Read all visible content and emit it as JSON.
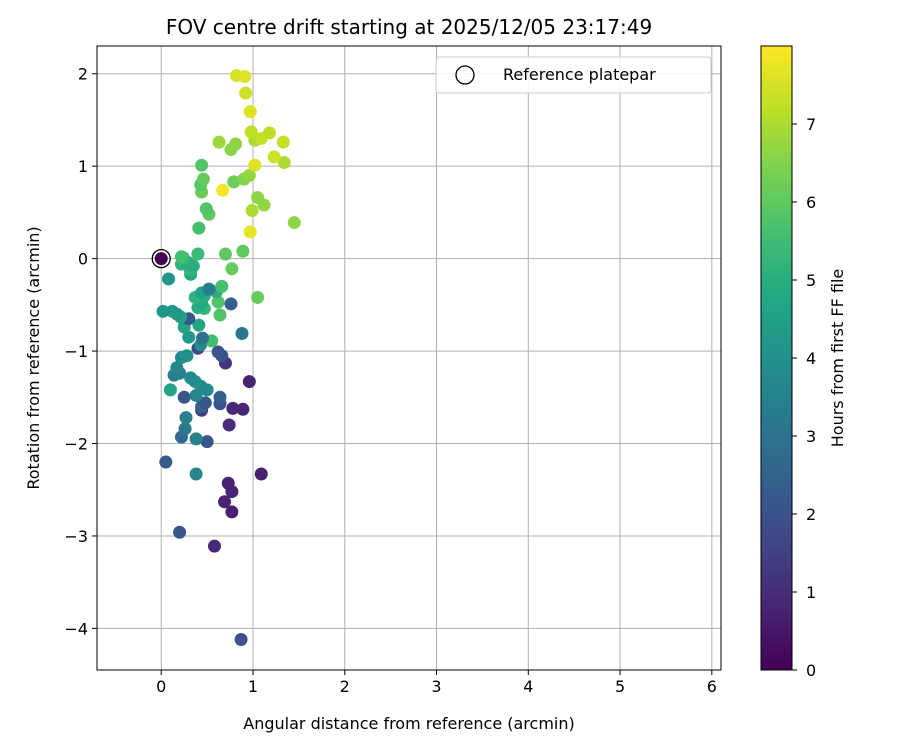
{
  "chart_data": {
    "type": "scatter",
    "title": "FOV centre drift starting at 2025/12/05 23:17:49",
    "xlabel": "Angular distance from reference (arcmin)",
    "ylabel": "Rotation from reference (arcmin)",
    "xlim": [
      -0.7,
      6.1
    ],
    "ylim": [
      -4.45,
      2.3
    ],
    "xticks": [
      0,
      1,
      2,
      3,
      4,
      5,
      6
    ],
    "yticks": [
      -4,
      -3,
      -2,
      -1,
      0,
      1,
      2
    ],
    "grid": true,
    "legend": {
      "position": "top-right",
      "entries": [
        "Reference platepar"
      ]
    },
    "reference_point": {
      "x": 0,
      "y": 0
    },
    "colorbar": {
      "label": "Hours from first FF file",
      "range": [
        0,
        8
      ],
      "ticks": [
        0,
        1,
        2,
        3,
        4,
        5,
        6,
        7
      ],
      "colormap": "viridis"
    },
    "points": [
      {
        "x": 0.0,
        "y": 0.0,
        "h": 0.0
      },
      {
        "x": 0.87,
        "y": -4.12,
        "h": 2.0
      },
      {
        "x": 0.58,
        "y": -3.11,
        "h": 0.9
      },
      {
        "x": 0.2,
        "y": -2.96,
        "h": 2.2
      },
      {
        "x": 0.77,
        "y": -2.74,
        "h": 0.7
      },
      {
        "x": 0.69,
        "y": -2.63,
        "h": 0.8
      },
      {
        "x": 0.77,
        "y": -2.52,
        "h": 0.8
      },
      {
        "x": 0.73,
        "y": -2.43,
        "h": 0.7
      },
      {
        "x": 1.09,
        "y": -2.33,
        "h": 0.7
      },
      {
        "x": 0.38,
        "y": -2.33,
        "h": 3.6
      },
      {
        "x": 0.05,
        "y": -2.2,
        "h": 2.3
      },
      {
        "x": 0.5,
        "y": -1.98,
        "h": 2.1
      },
      {
        "x": 0.38,
        "y": -1.95,
        "h": 3.5
      },
      {
        "x": 0.22,
        "y": -1.93,
        "h": 2.7
      },
      {
        "x": 0.26,
        "y": -1.84,
        "h": 3.2
      },
      {
        "x": 0.74,
        "y": -1.8,
        "h": 1.0
      },
      {
        "x": 0.27,
        "y": -1.72,
        "h": 3.5
      },
      {
        "x": 0.44,
        "y": -1.64,
        "h": 1.5
      },
      {
        "x": 0.89,
        "y": -1.63,
        "h": 0.8
      },
      {
        "x": 0.78,
        "y": -1.62,
        "h": 0.9
      },
      {
        "x": 0.44,
        "y": -1.6,
        "h": 2.5
      },
      {
        "x": 0.48,
        "y": -1.56,
        "h": 2.2
      },
      {
        "x": 0.64,
        "y": -1.57,
        "h": 2.0
      },
      {
        "x": 0.25,
        "y": -1.5,
        "h": 2.1
      },
      {
        "x": 0.64,
        "y": -1.5,
        "h": 2.4
      },
      {
        "x": 0.38,
        "y": -1.48,
        "h": 3.6
      },
      {
        "x": 0.5,
        "y": -1.42,
        "h": 3.8
      },
      {
        "x": 0.1,
        "y": -1.42,
        "h": 4.6
      },
      {
        "x": 0.43,
        "y": -1.38,
        "h": 3.7
      },
      {
        "x": 0.37,
        "y": -1.33,
        "h": 4.0
      },
      {
        "x": 0.96,
        "y": -1.33,
        "h": 0.8
      },
      {
        "x": 0.32,
        "y": -1.29,
        "h": 3.8
      },
      {
        "x": 0.14,
        "y": -1.26,
        "h": 3.5
      },
      {
        "x": 0.2,
        "y": -1.24,
        "h": 3.5
      },
      {
        "x": 0.17,
        "y": -1.18,
        "h": 3.6
      },
      {
        "x": 0.7,
        "y": -1.13,
        "h": 1.2
      },
      {
        "x": 0.22,
        "y": -1.07,
        "h": 3.8
      },
      {
        "x": 0.28,
        "y": -1.05,
        "h": 4.0
      },
      {
        "x": 0.66,
        "y": -1.05,
        "h": 2.0
      },
      {
        "x": 0.62,
        "y": -1.01,
        "h": 2.1
      },
      {
        "x": 0.4,
        "y": -0.97,
        "h": 1.7
      },
      {
        "x": 0.43,
        "y": -0.93,
        "h": 3.8
      },
      {
        "x": 0.55,
        "y": -0.89,
        "h": 5.6
      },
      {
        "x": 0.45,
        "y": -0.86,
        "h": 3.0
      },
      {
        "x": 0.3,
        "y": -0.85,
        "h": 4.3
      },
      {
        "x": 0.88,
        "y": -0.81,
        "h": 3.2
      },
      {
        "x": 0.25,
        "y": -0.74,
        "h": 4.6
      },
      {
        "x": 0.41,
        "y": -0.72,
        "h": 4.7
      },
      {
        "x": 0.3,
        "y": -0.65,
        "h": 2.2
      },
      {
        "x": 0.21,
        "y": -0.63,
        "h": 4.5
      },
      {
        "x": 0.64,
        "y": -0.61,
        "h": 5.8
      },
      {
        "x": 0.17,
        "y": -0.6,
        "h": 4.2
      },
      {
        "x": 0.12,
        "y": -0.57,
        "h": 4.3
      },
      {
        "x": 0.02,
        "y": -0.57,
        "h": 4.1
      },
      {
        "x": 0.47,
        "y": -0.54,
        "h": 5.2
      },
      {
        "x": 0.4,
        "y": -0.53,
        "h": 5.0
      },
      {
        "x": 0.76,
        "y": -0.49,
        "h": 2.4
      },
      {
        "x": 0.44,
        "y": -0.48,
        "h": 4.8
      },
      {
        "x": 0.62,
        "y": -0.47,
        "h": 5.8
      },
      {
        "x": 0.42,
        "y": -0.44,
        "h": 4.9
      },
      {
        "x": 1.05,
        "y": -0.42,
        "h": 6.1
      },
      {
        "x": 0.37,
        "y": -0.42,
        "h": 5.1
      },
      {
        "x": 0.47,
        "y": -0.4,
        "h": 5.0
      },
      {
        "x": 0.44,
        "y": -0.37,
        "h": 4.6
      },
      {
        "x": 0.6,
        "y": -0.36,
        "h": 5.0
      },
      {
        "x": 0.52,
        "y": -0.33,
        "h": 3.4
      },
      {
        "x": 0.66,
        "y": -0.3,
        "h": 5.6
      },
      {
        "x": 0.08,
        "y": -0.22,
        "h": 4.1
      },
      {
        "x": 0.32,
        "y": -0.17,
        "h": 4.8
      },
      {
        "x": 0.32,
        "y": -0.13,
        "h": 5.2
      },
      {
        "x": 0.77,
        "y": -0.11,
        "h": 6.1
      },
      {
        "x": 0.35,
        "y": -0.08,
        "h": 5.0
      },
      {
        "x": 0.22,
        "y": -0.06,
        "h": 5.2
      },
      {
        "x": 0.29,
        "y": -0.04,
        "h": 5.0
      },
      {
        "x": 0.24,
        "y": 0.01,
        "h": 5.3
      },
      {
        "x": 0.22,
        "y": 0.02,
        "h": 5.6
      },
      {
        "x": 0.4,
        "y": 0.05,
        "h": 5.4
      },
      {
        "x": 0.7,
        "y": 0.05,
        "h": 6.0
      },
      {
        "x": 0.89,
        "y": 0.08,
        "h": 6.0
      },
      {
        "x": 0.97,
        "y": 0.29,
        "h": 7.7
      },
      {
        "x": 0.41,
        "y": 0.33,
        "h": 5.6
      },
      {
        "x": 1.45,
        "y": 0.39,
        "h": 6.6
      },
      {
        "x": 0.52,
        "y": 0.48,
        "h": 6.0
      },
      {
        "x": 0.49,
        "y": 0.54,
        "h": 5.8
      },
      {
        "x": 0.99,
        "y": 0.52,
        "h": 7.0
      },
      {
        "x": 1.12,
        "y": 0.58,
        "h": 6.7
      },
      {
        "x": 1.05,
        "y": 0.66,
        "h": 6.6
      },
      {
        "x": 0.44,
        "y": 0.72,
        "h": 6.2
      },
      {
        "x": 0.67,
        "y": 0.74,
        "h": 7.9
      },
      {
        "x": 0.43,
        "y": 0.8,
        "h": 5.9
      },
      {
        "x": 0.79,
        "y": 0.83,
        "h": 6.2
      },
      {
        "x": 0.46,
        "y": 0.86,
        "h": 6.1
      },
      {
        "x": 0.9,
        "y": 0.86,
        "h": 6.5
      },
      {
        "x": 0.96,
        "y": 0.9,
        "h": 6.7
      },
      {
        "x": 0.44,
        "y": 1.01,
        "h": 5.8
      },
      {
        "x": 1.02,
        "y": 1.01,
        "h": 7.6
      },
      {
        "x": 1.34,
        "y": 1.04,
        "h": 7.0
      },
      {
        "x": 1.23,
        "y": 1.1,
        "h": 7.4
      },
      {
        "x": 0.76,
        "y": 1.18,
        "h": 6.6
      },
      {
        "x": 0.81,
        "y": 1.24,
        "h": 6.6
      },
      {
        "x": 0.63,
        "y": 1.26,
        "h": 6.8
      },
      {
        "x": 1.33,
        "y": 1.26,
        "h": 7.3
      },
      {
        "x": 1.02,
        "y": 1.28,
        "h": 7.0
      },
      {
        "x": 1.09,
        "y": 1.3,
        "h": 7.3
      },
      {
        "x": 0.98,
        "y": 1.37,
        "h": 7.2
      },
      {
        "x": 1.18,
        "y": 1.36,
        "h": 7.2
      },
      {
        "x": 0.97,
        "y": 1.59,
        "h": 7.6
      },
      {
        "x": 0.92,
        "y": 1.79,
        "h": 7.4
      },
      {
        "x": 0.82,
        "y": 1.98,
        "h": 7.5
      },
      {
        "x": 0.91,
        "y": 1.97,
        "h": 7.6
      }
    ]
  }
}
